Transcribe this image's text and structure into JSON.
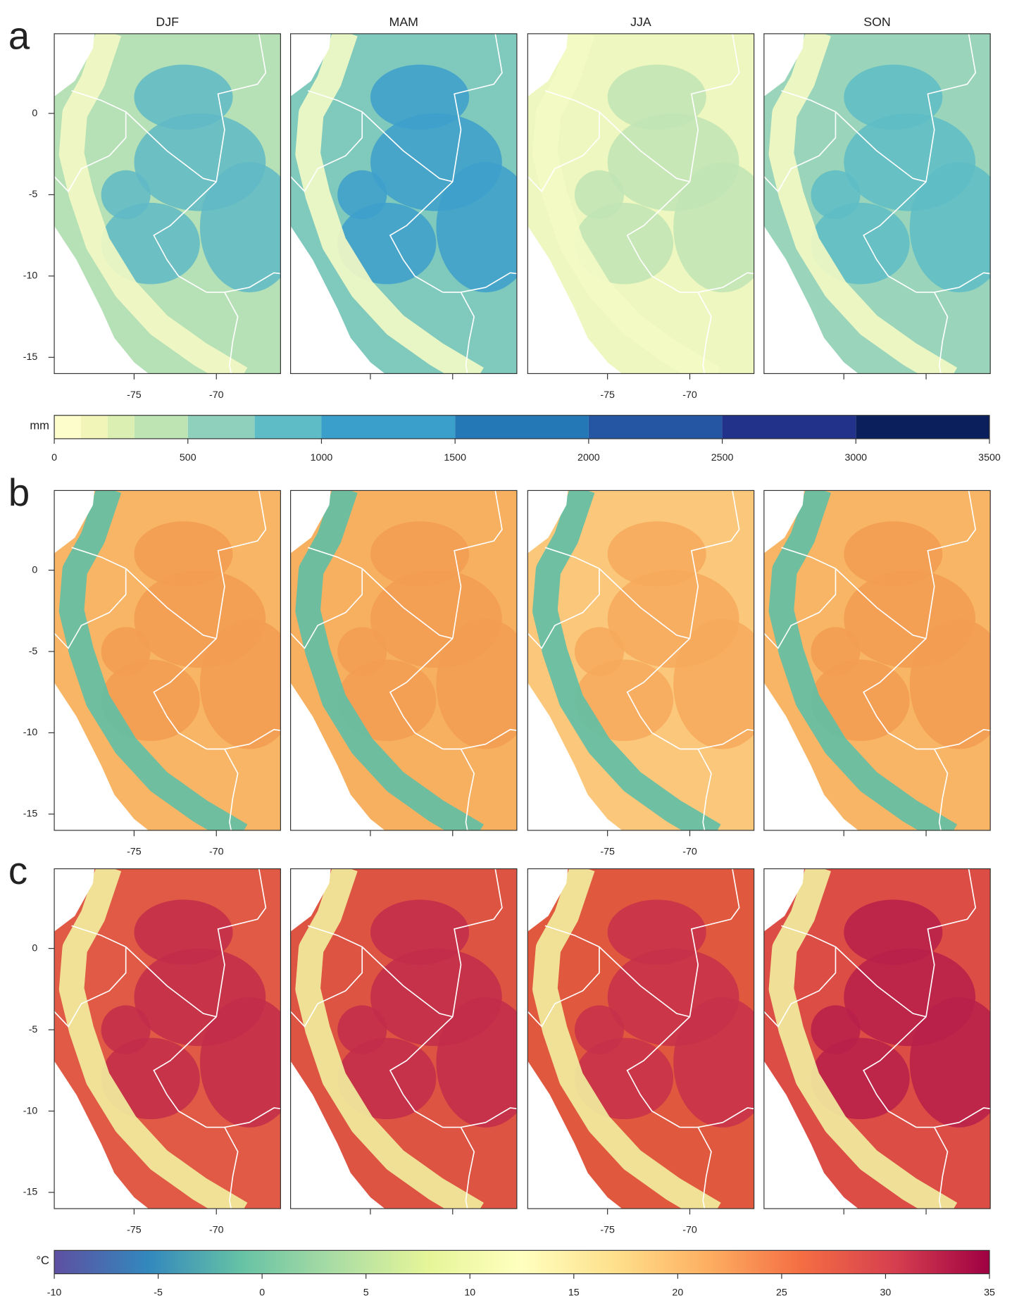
{
  "seasons": [
    "DJF",
    "MAM",
    "JJA",
    "SON"
  ],
  "rows": [
    {
      "label": "a"
    },
    {
      "label": "b"
    },
    {
      "label": "c"
    }
  ],
  "map_axes": {
    "xlim": [
      -79.85,
      -66.1
    ],
    "ylim": [
      -16,
      4.9
    ],
    "xticks": [
      -75,
      -70
    ],
    "yticks": [
      0,
      -5,
      -10,
      -15
    ]
  },
  "colorbars": [
    {
      "unit": "mm",
      "lim": [
        0,
        3500
      ],
      "ticks": [
        0,
        500,
        1000,
        1500,
        2000,
        2500,
        3000,
        3500
      ],
      "breaks": [
        0,
        100,
        200,
        300,
        500,
        750,
        1000,
        1500,
        2000,
        2500,
        3000,
        3500
      ],
      "colors": [
        "#fdfdcb",
        "#f1f6b8",
        "#dbefb2",
        "#bfe4b4",
        "#8fd0bc",
        "#5ebcc6",
        "#3a9fca",
        "#2578b6",
        "#2456a3",
        "#22318a",
        "#0b1f5c"
      ]
    },
    {
      "unit": "°C",
      "lim": [
        -10,
        35
      ],
      "ticks": [
        -10,
        -5,
        0,
        5,
        10,
        15,
        20,
        25,
        30,
        35
      ],
      "colors": [
        "#5e4fa2",
        "#3288bd",
        "#66c2a5",
        "#abdda4",
        "#e6f598",
        "#ffffbf",
        "#fee08b",
        "#fdae61",
        "#f46d43",
        "#d53e4f",
        "#9e0142"
      ]
    }
  ]
}
